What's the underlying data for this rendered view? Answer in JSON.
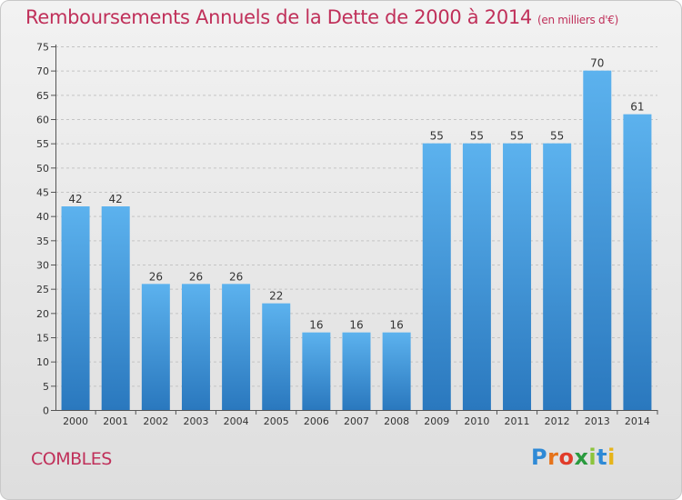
{
  "chart_data": {
    "type": "bar",
    "title": "Remboursements Annuels de la Dette de 2000 à 2014",
    "subtitle": "(en milliers d'€)",
    "categories": [
      "2000",
      "2001",
      "2002",
      "2003",
      "2004",
      "2005",
      "2006",
      "2007",
      "2008",
      "2009",
      "2010",
      "2011",
      "2012",
      "2013",
      "2014"
    ],
    "values": [
      42,
      42,
      26,
      26,
      26,
      22,
      16,
      16,
      16,
      55,
      55,
      55,
      55,
      70,
      61
    ],
    "ylim": [
      0,
      75
    ],
    "yticks": [
      0,
      5,
      10,
      15,
      20,
      25,
      30,
      35,
      40,
      45,
      50,
      55,
      60,
      65,
      70,
      75
    ],
    "grid": true,
    "data_labels": true,
    "bar_color": "#3a8fd6"
  },
  "footer": {
    "location": "COMBLES",
    "logo": "Proxiti",
    "logo_letters": [
      "P",
      "r",
      "o",
      "x",
      "i",
      "t",
      "i"
    ]
  }
}
